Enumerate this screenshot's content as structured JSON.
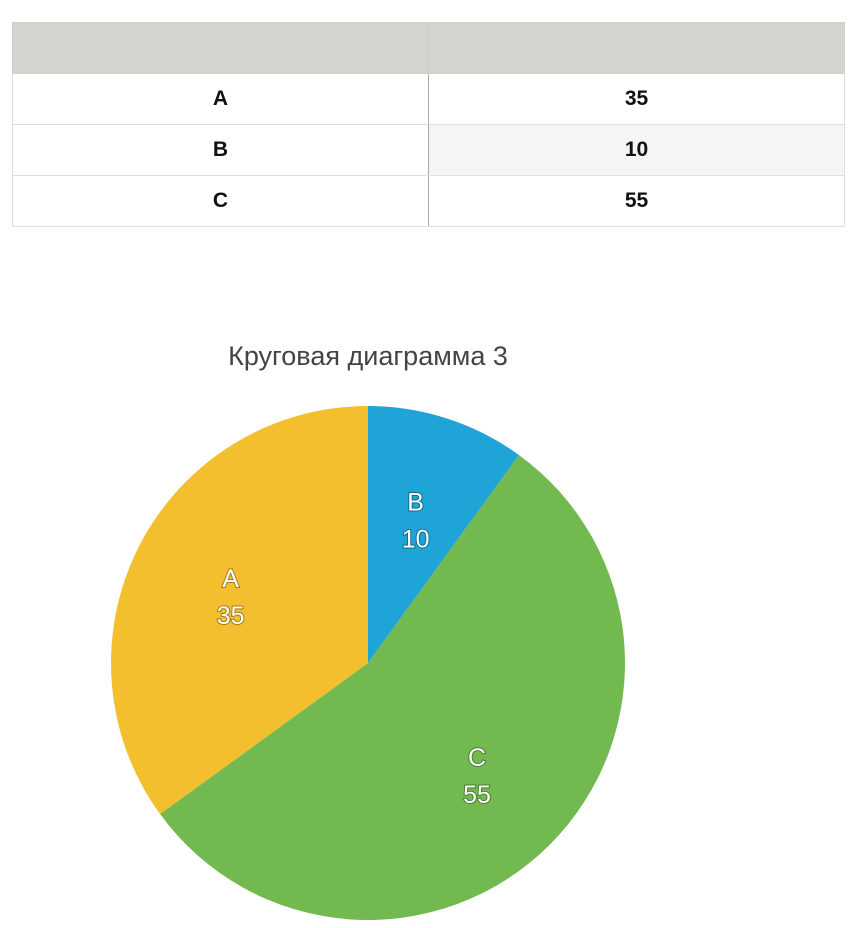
{
  "table": {
    "header": [
      "",
      ""
    ],
    "rows": [
      {
        "label": "A",
        "value": "35"
      },
      {
        "label": "B",
        "value": "10"
      },
      {
        "label": "C",
        "value": "55"
      }
    ]
  },
  "chart_data": {
    "type": "pie",
    "title": "Круговая диаграмма 3",
    "categories": [
      "A",
      "B",
      "C"
    ],
    "values": [
      35,
      10,
      55
    ],
    "colors": [
      "#f3bf2e",
      "#1ea4d7",
      "#72ba4f"
    ],
    "start": "12 o'clock, clockwise starting with B",
    "data_labels": "category and value inside each slice"
  }
}
